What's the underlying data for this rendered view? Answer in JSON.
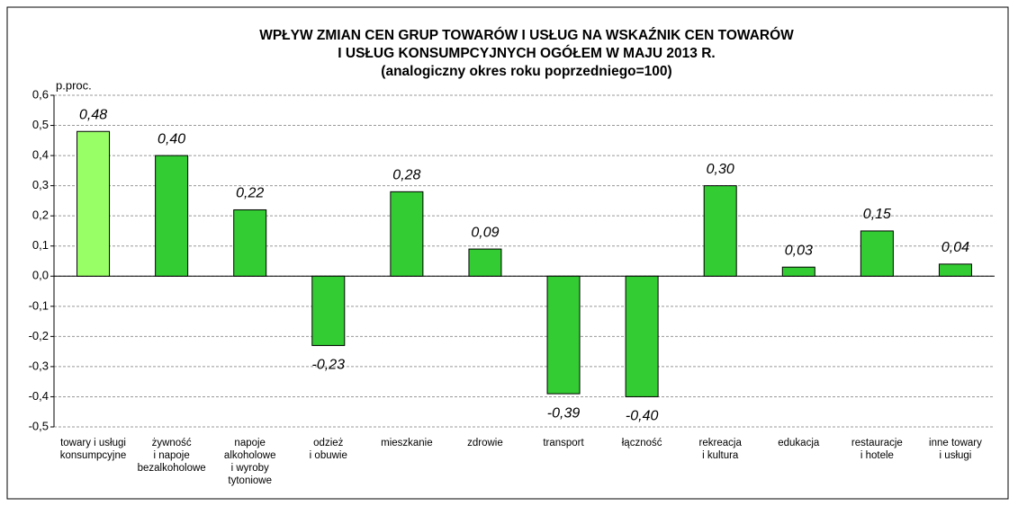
{
  "chart_data": {
    "type": "bar",
    "title": "WPŁYW ZMIAN CEN GRUP TOWARÓW I USŁUG NA WSKAŹNIK CEN TOWARÓW\nI USŁUG KONSUMPCYJNYCH OGÓŁEM W MAJU 2013 R.\n(analogiczny okres roku poprzedniego=100)",
    "y_label": "p.proc.",
    "categories": [
      "towary i usługi\nkonsumpcyjne",
      "żywność\ni napoje\nbezalkoholowe",
      "napoje\nalkoholowe\ni wyroby\ntytoniowe",
      "odzież\ni obuwie",
      "mieszkanie",
      "zdrowie",
      "transport",
      "łączność",
      "rekreacja\ni kultura",
      "edukacja",
      "restauracje\ni hotele",
      "inne towary\ni usługi"
    ],
    "values": [
      0.48,
      0.4,
      0.22,
      -0.23,
      0.28,
      0.09,
      -0.39,
      -0.4,
      0.3,
      0.03,
      0.15,
      0.04
    ],
    "value_labels": [
      "0,48",
      "0,40",
      "0,22",
      "-0,23",
      "0,28",
      "0,09",
      "-0,39",
      "-0,40",
      "0,30",
      "0,03",
      "0,15",
      "0,04"
    ],
    "colors": [
      "#99ff66",
      "#33cc33",
      "#33cc33",
      "#33cc33",
      "#33cc33",
      "#33cc33",
      "#33cc33",
      "#33cc33",
      "#33cc33",
      "#33cc33",
      "#33cc33",
      "#33cc33"
    ],
    "ylim": [
      -0.5,
      0.6
    ],
    "yticks": [
      {
        "value": 0.6,
        "label": "0,6"
      },
      {
        "value": 0.5,
        "label": "0,5"
      },
      {
        "value": 0.4,
        "label": "0,4"
      },
      {
        "value": 0.3,
        "label": "0,3"
      },
      {
        "value": 0.2,
        "label": "0,2"
      },
      {
        "value": 0.1,
        "label": "0,1"
      },
      {
        "value": 0,
        "label": "0,0"
      },
      {
        "value": -0.1,
        "label": "-0,1"
      },
      {
        "value": -0.2,
        "label": "-0,2"
      },
      {
        "value": -0.3,
        "label": "-0,3"
      },
      {
        "value": -0.4,
        "label": "-0,4"
      },
      {
        "value": -0.5,
        "label": "-0,5"
      }
    ],
    "grid": true
  }
}
